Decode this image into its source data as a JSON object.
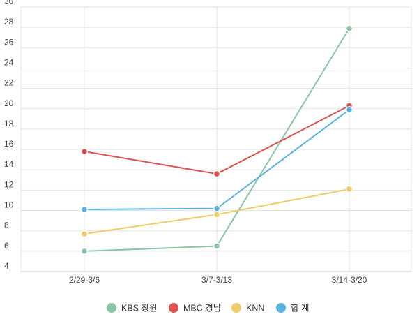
{
  "chart_data": {
    "type": "line",
    "title": "",
    "xlabel": "",
    "ylabel": "",
    "categories": [
      "2/29-3/6",
      "3/7-3/13",
      "3/14-3/20"
    ],
    "ylim": [
      4,
      30
    ],
    "yticks": [
      4,
      6,
      8,
      10,
      12,
      14,
      16,
      18,
      20,
      22,
      24,
      26,
      28,
      30
    ],
    "grid": true,
    "legend_position": "bottom",
    "series": [
      {
        "name": "KBS 창원",
        "color": "#8cc5a4",
        "values": [
          6.0,
          6.5,
          27.9
        ]
      },
      {
        "name": "MBC 경남",
        "color": "#d9534f",
        "values": [
          15.8,
          13.6,
          20.3
        ]
      },
      {
        "name": "KNN",
        "color": "#eecb6b",
        "values": [
          7.7,
          9.6,
          12.1
        ]
      },
      {
        "name": "합 계",
        "color": "#5db2e0",
        "values": [
          10.1,
          10.2,
          19.9
        ]
      }
    ]
  }
}
